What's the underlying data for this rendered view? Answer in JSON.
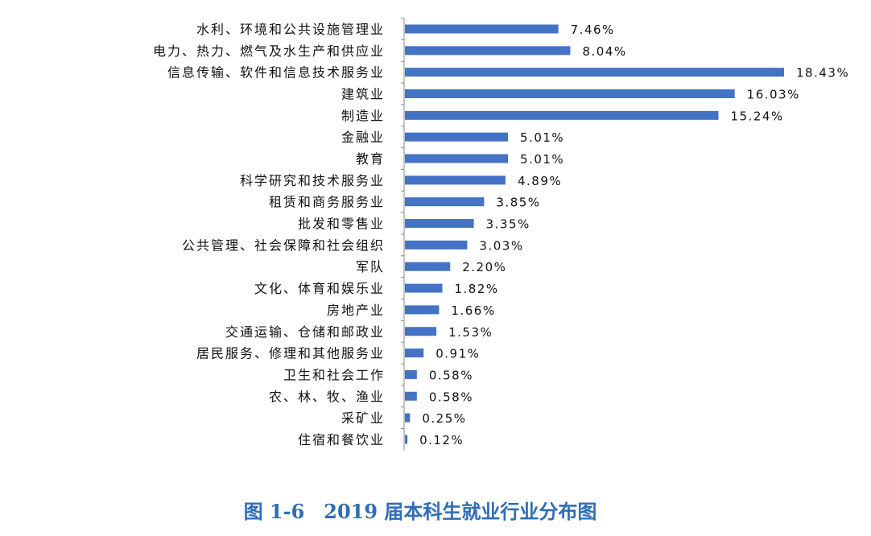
{
  "chart_data": {
    "type": "bar",
    "orientation": "horizontal",
    "title": "图 1-6　2019 届本科生就业行业分布图",
    "categories": [
      "水利、环境和公共设施管理业",
      "电力、热力、燃气及水生产和供应业",
      "信息传输、软件和信息技术服务业",
      "建筑业",
      "制造业",
      "金融业",
      "教育",
      "科学研究和技术服务业",
      "租赁和商务服务业",
      "批发和零售业",
      "公共管理、社会保障和社会组织",
      "军队",
      "文化、体育和娱乐业",
      "房地产业",
      "交通运输、仓储和邮政业",
      "居民服务、修理和其他服务业",
      "卫生和社会工作",
      "农、林、牧、渔业",
      "采矿业",
      "住宿和餐饮业"
    ],
    "values": [
      7.46,
      8.04,
      18.43,
      16.03,
      15.24,
      5.01,
      5.01,
      4.89,
      3.85,
      3.35,
      3.03,
      2.2,
      1.82,
      1.66,
      1.53,
      0.91,
      0.58,
      0.58,
      0.25,
      0.12
    ],
    "labels": [
      "7.46%",
      "8.04%",
      "18.43%",
      "16.03%",
      "15.24%",
      "5.01%",
      "5.01%",
      "4.89%",
      "3.85%",
      "3.35%",
      "3.03%",
      "2.20%",
      "1.82%",
      "1.66%",
      "1.53%",
      "0.91%",
      "0.58%",
      "0.58%",
      "0.25%",
      "0.12%"
    ],
    "unit": "%",
    "xlim": [
      0,
      18.43
    ],
    "grid": false,
    "legend": "none",
    "bar_color": "#4472c4",
    "title_color": "#2f6db6"
  }
}
